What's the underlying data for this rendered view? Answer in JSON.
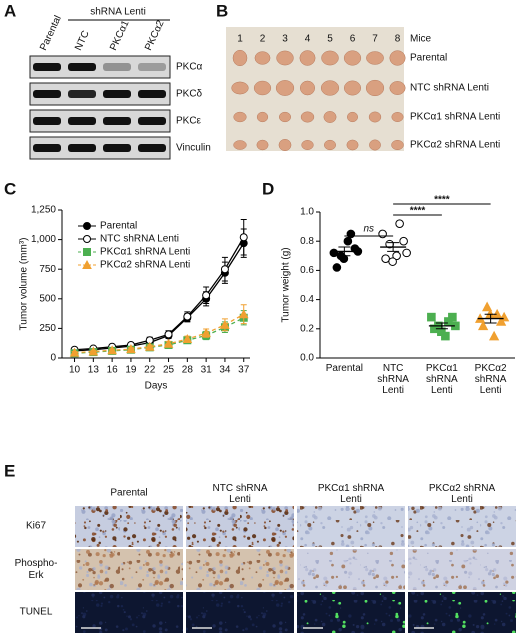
{
  "panel_labels": [
    "A",
    "B",
    "C",
    "D",
    "E"
  ],
  "blot": {
    "group_label": "shRNA Lenti",
    "lanes": [
      "Parental",
      "NTC",
      "PKCα1",
      "PKCα2"
    ],
    "proteins": [
      "PKCα",
      "PKCδ",
      "PKCε",
      "Vinculin"
    ]
  },
  "photo": {
    "mice_label": "Mice",
    "mice": [
      "1",
      "2",
      "3",
      "4",
      "5",
      "6",
      "7",
      "8"
    ],
    "rows": [
      "Parental",
      "NTC shRNA Lenti",
      "PKCα1 shRNA Lenti",
      "PKCα2 shRNA Lenti"
    ]
  },
  "chart_data": [
    {
      "type": "line",
      "xlabel": "Days",
      "ylabel": "Tumor volume (mm³)",
      "x": [
        10,
        13,
        16,
        19,
        22,
        25,
        28,
        31,
        34,
        37
      ],
      "xlim": [
        8,
        38
      ],
      "xticks": [
        10,
        13,
        16,
        19,
        22,
        25,
        28,
        31,
        34,
        37
      ],
      "ylim": [
        0,
        1250
      ],
      "yticks": [
        0,
        250,
        500,
        750,
        {
          "value": 1000,
          "label": "1,000"
        },
        {
          "value": 1250,
          "label": "1,250"
        }
      ],
      "legend": "upper left",
      "series": [
        {
          "name": "Parental",
          "color": "#000000",
          "marker": "circle",
          "filled": true,
          "dashed": false,
          "values": [
            60,
            70,
            85,
            100,
            130,
            190,
            340,
            500,
            720,
            970
          ],
          "errors": [
            10,
            10,
            12,
            15,
            20,
            25,
            35,
            60,
            90,
            120
          ]
        },
        {
          "name": "NTC shRNA Lenti",
          "color": "#000000",
          "marker": "circle",
          "filled": false,
          "dashed": false,
          "values": [
            70,
            80,
            95,
            110,
            150,
            200,
            350,
            530,
            750,
            1020
          ],
          "errors": [
            10,
            10,
            12,
            15,
            25,
            30,
            40,
            70,
            100,
            150
          ]
        },
        {
          "name": "PKCα1 shRNA Lenti",
          "color": "#4caf50",
          "marker": "square",
          "filled": true,
          "dashed": true,
          "values": [
            40,
            50,
            60,
            70,
            90,
            110,
            150,
            190,
            260,
            340
          ],
          "errors": [
            10,
            10,
            10,
            10,
            15,
            20,
            25,
            35,
            45,
            60
          ]
        },
        {
          "name": "PKCα2 shRNA Lenti",
          "color": "#f0a030",
          "marker": "triangle",
          "filled": true,
          "dashed": true,
          "values": [
            45,
            55,
            65,
            75,
            95,
            120,
            160,
            210,
            280,
            370
          ],
          "errors": [
            10,
            10,
            10,
            12,
            15,
            20,
            25,
            35,
            50,
            80
          ]
        }
      ]
    },
    {
      "type": "strip",
      "ylabel": "Tumor weight (g)",
      "categories": [
        "Parental",
        "NTC shRNA Lenti",
        "PKCα1 shRNA Lenti",
        "PKCα2 shRNA Lenti"
      ],
      "ylim": [
        0,
        1
      ],
      "yticks": [
        {
          "value": 0,
          "label": "0.0"
        },
        0.2,
        0.4,
        0.6,
        0.8,
        {
          "value": 1,
          "label": "1.0"
        }
      ],
      "series": [
        {
          "color": "#000000",
          "marker": "circle",
          "filled": true,
          "values": [
            0.72,
            0.7,
            0.8,
            0.75,
            0.62,
            0.68,
            0.85,
            0.73
          ],
          "mean": 0.73,
          "sem": 0.03
        },
        {
          "color": "#000000",
          "marker": "circle",
          "filled": false,
          "values": [
            0.85,
            0.78,
            0.7,
            0.8,
            0.68,
            0.66,
            0.92,
            0.72
          ],
          "mean": 0.76,
          "sem": 0.03
        },
        {
          "color": "#4caf50",
          "marker": "square",
          "filled": true,
          "values": [
            0.28,
            0.22,
            0.15,
            0.28,
            0.2,
            0.18,
            0.25,
            0.22
          ],
          "mean": 0.22,
          "sem": 0.02
        },
        {
          "color": "#f0a030",
          "marker": "triangle",
          "filled": true,
          "values": [
            0.27,
            0.35,
            0.15,
            0.25,
            0.22,
            0.3,
            0.3,
            0.28
          ],
          "mean": 0.27,
          "sem": 0.03
        }
      ],
      "annotations": [
        "ns",
        "****",
        "****"
      ]
    }
  ],
  "histology": {
    "columns": [
      "Parental",
      "NTC shRNA Lenti",
      "PKCα1 shRNA Lenti",
      "PKCα2 shRNA Lenti"
    ],
    "rows": [
      "Ki67",
      "Phospho-Erk",
      "TUNEL"
    ]
  }
}
